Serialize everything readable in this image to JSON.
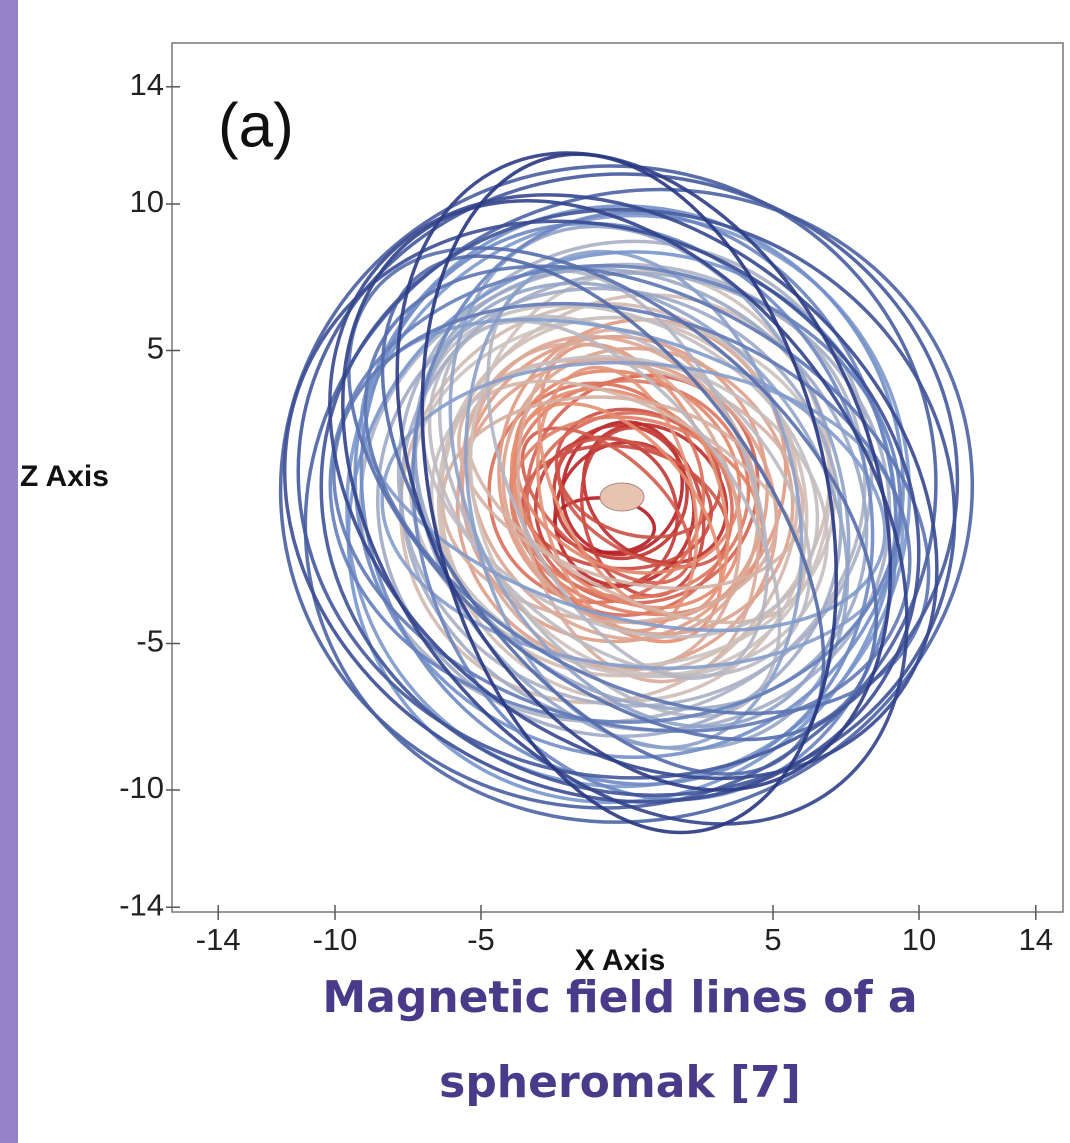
{
  "figure": {
    "panel_label": "(a)",
    "x_axis": {
      "label": "X Axis",
      "ticks": [
        -14,
        -10,
        -5,
        5,
        10,
        14
      ]
    },
    "z_axis": {
      "label": "Z Axis",
      "ticks": [
        14,
        10,
        5,
        -5,
        -10,
        -14
      ]
    },
    "caption": [
      "Magnetic field lines of a",
      "spheromak [7]"
    ]
  }
}
